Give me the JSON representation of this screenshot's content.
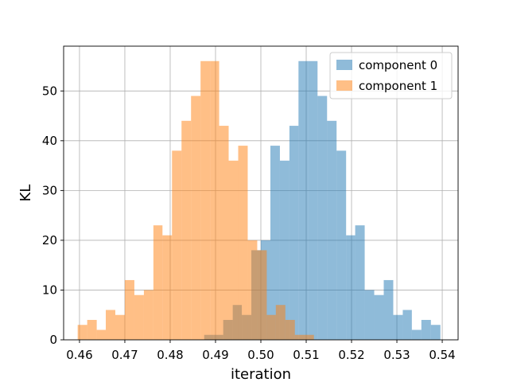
{
  "chart_data": {
    "type": "histogram",
    "title": "",
    "xlabel": "iteration",
    "ylabel": "KL",
    "xlim": [
      0.4565,
      0.5435
    ],
    "ylim": [
      0,
      59
    ],
    "xticks": [
      0.46,
      0.47,
      0.48,
      0.49,
      0.5,
      0.51,
      0.52,
      0.53,
      0.54
    ],
    "xtick_labels": [
      "0.46",
      "0.47",
      "0.48",
      "0.49",
      "0.50",
      "0.51",
      "0.52",
      "0.53",
      "0.54"
    ],
    "yticks": [
      0,
      10,
      20,
      30,
      40,
      50
    ],
    "ytick_labels": [
      "0",
      "10",
      "20",
      "30",
      "40",
      "50"
    ],
    "grid": true,
    "legend_position": "top-right",
    "series": [
      {
        "name": "component 0",
        "color": "#1f77b4",
        "alpha": 0.5,
        "bins": [
          {
            "x0": 0.4875,
            "x1": 0.4896,
            "count": 1
          },
          {
            "x0": 0.4896,
            "x1": 0.4917,
            "count": 1
          },
          {
            "x0": 0.4917,
            "x1": 0.4938,
            "count": 4
          },
          {
            "x0": 0.4938,
            "x1": 0.4958,
            "count": 7
          },
          {
            "x0": 0.4958,
            "x1": 0.4979,
            "count": 5
          },
          {
            "x0": 0.4979,
            "x1": 0.5,
            "count": 18
          },
          {
            "x0": 0.5,
            "x1": 0.5021,
            "count": 20
          },
          {
            "x0": 0.5021,
            "x1": 0.5042,
            "count": 39
          },
          {
            "x0": 0.5042,
            "x1": 0.5063,
            "count": 36
          },
          {
            "x0": 0.5063,
            "x1": 0.5083,
            "count": 43
          },
          {
            "x0": 0.5083,
            "x1": 0.5104,
            "count": 56
          },
          {
            "x0": 0.5104,
            "x1": 0.5125,
            "count": 56
          },
          {
            "x0": 0.5125,
            "x1": 0.5146,
            "count": 49
          },
          {
            "x0": 0.5146,
            "x1": 0.5167,
            "count": 44
          },
          {
            "x0": 0.5167,
            "x1": 0.5188,
            "count": 38
          },
          {
            "x0": 0.5188,
            "x1": 0.5208,
            "count": 21
          },
          {
            "x0": 0.5208,
            "x1": 0.5229,
            "count": 23
          },
          {
            "x0": 0.5229,
            "x1": 0.525,
            "count": 10
          },
          {
            "x0": 0.525,
            "x1": 0.5271,
            "count": 9
          },
          {
            "x0": 0.5271,
            "x1": 0.5292,
            "count": 12
          },
          {
            "x0": 0.5292,
            "x1": 0.5313,
            "count": 5
          },
          {
            "x0": 0.5313,
            "x1": 0.5333,
            "count": 6
          },
          {
            "x0": 0.5333,
            "x1": 0.5354,
            "count": 2
          },
          {
            "x0": 0.5354,
            "x1": 0.5375,
            "count": 4
          },
          {
            "x0": 0.5375,
            "x1": 0.5396,
            "count": 3
          }
        ]
      },
      {
        "name": "component 1",
        "color": "#ff7f0e",
        "alpha": 0.5,
        "bins": [
          {
            "x0": 0.4596,
            "x1": 0.4617,
            "count": 3
          },
          {
            "x0": 0.4617,
            "x1": 0.4638,
            "count": 4
          },
          {
            "x0": 0.4638,
            "x1": 0.4658,
            "count": 2
          },
          {
            "x0": 0.4658,
            "x1": 0.4679,
            "count": 6
          },
          {
            "x0": 0.4679,
            "x1": 0.47,
            "count": 5
          },
          {
            "x0": 0.47,
            "x1": 0.4721,
            "count": 12
          },
          {
            "x0": 0.4721,
            "x1": 0.4742,
            "count": 9
          },
          {
            "x0": 0.4742,
            "x1": 0.4763,
            "count": 10
          },
          {
            "x0": 0.4763,
            "x1": 0.4783,
            "count": 23
          },
          {
            "x0": 0.4783,
            "x1": 0.4804,
            "count": 21
          },
          {
            "x0": 0.4804,
            "x1": 0.4825,
            "count": 38
          },
          {
            "x0": 0.4825,
            "x1": 0.4846,
            "count": 44
          },
          {
            "x0": 0.4846,
            "x1": 0.4867,
            "count": 49
          },
          {
            "x0": 0.4867,
            "x1": 0.4888,
            "count": 56
          },
          {
            "x0": 0.4888,
            "x1": 0.4908,
            "count": 56
          },
          {
            "x0": 0.4908,
            "x1": 0.4929,
            "count": 43
          },
          {
            "x0": 0.4929,
            "x1": 0.495,
            "count": 36
          },
          {
            "x0": 0.495,
            "x1": 0.4971,
            "count": 39
          },
          {
            "x0": 0.4971,
            "x1": 0.4992,
            "count": 20
          },
          {
            "x0": 0.4992,
            "x1": 0.5013,
            "count": 18
          },
          {
            "x0": 0.5013,
            "x1": 0.5033,
            "count": 5
          },
          {
            "x0": 0.5033,
            "x1": 0.5054,
            "count": 7
          },
          {
            "x0": 0.5054,
            "x1": 0.5075,
            "count": 4
          },
          {
            "x0": 0.5075,
            "x1": 0.5096,
            "count": 1
          },
          {
            "x0": 0.5096,
            "x1": 0.5117,
            "count": 1
          }
        ]
      }
    ]
  }
}
